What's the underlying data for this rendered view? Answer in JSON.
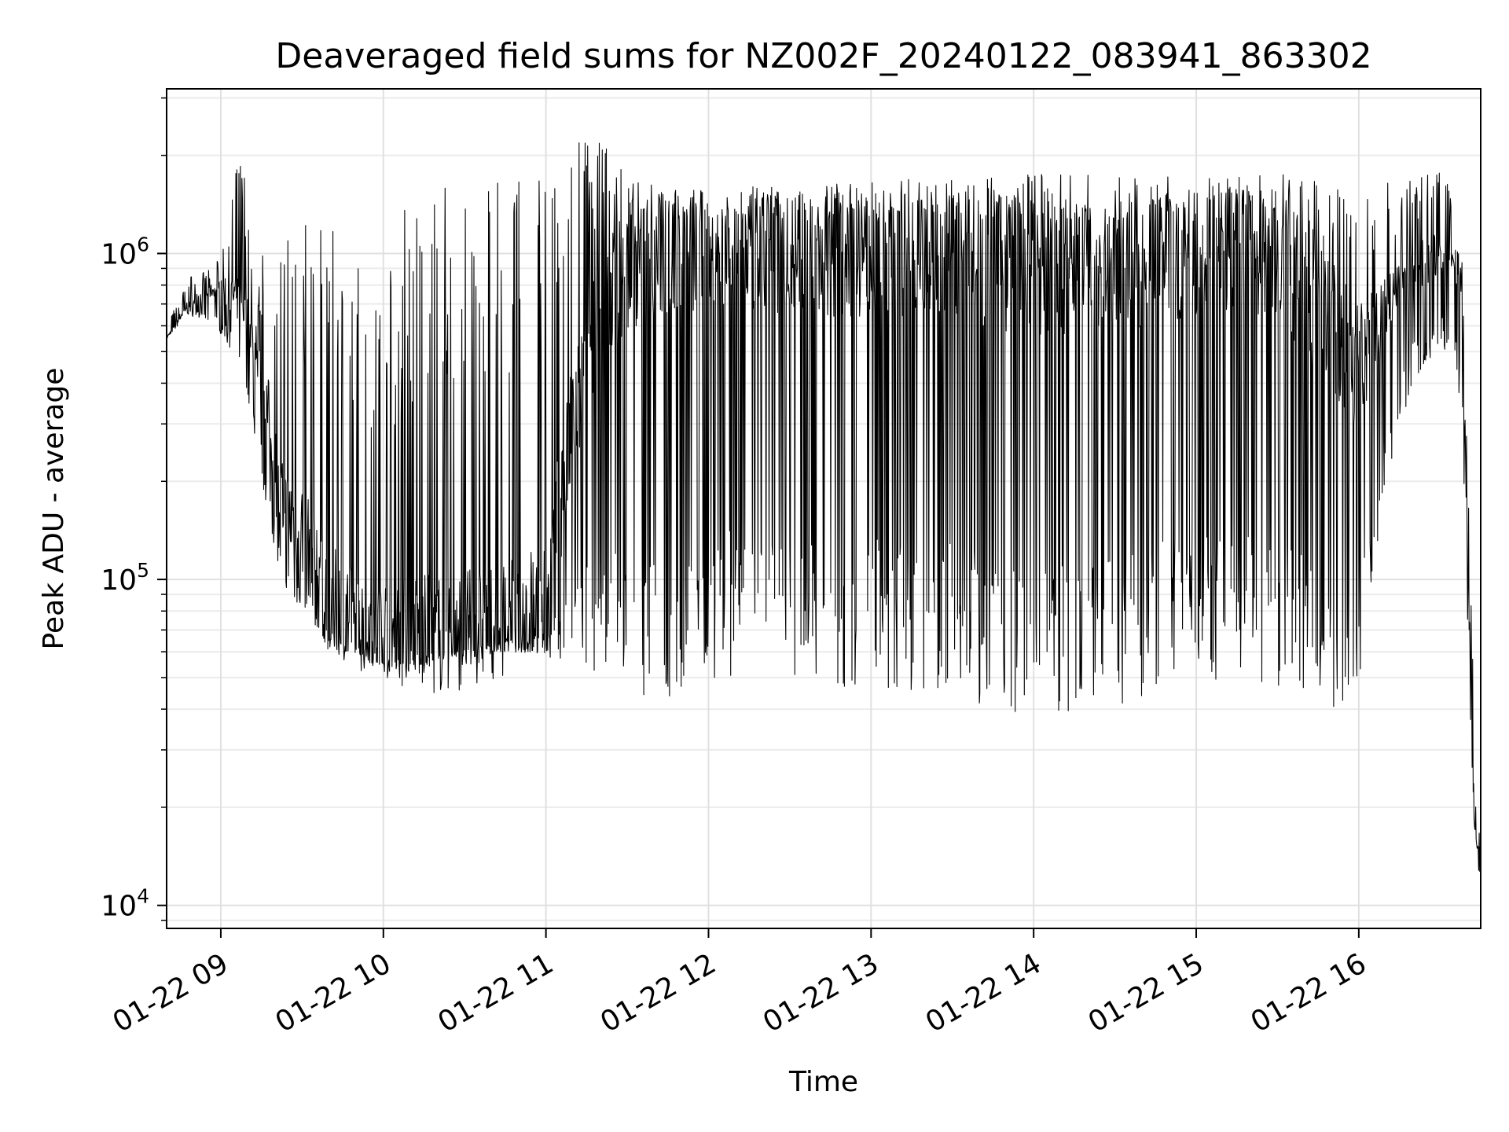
{
  "chart_data": {
    "type": "line",
    "title": "Deaveraged field sums for NZ002F_20240122_083941_863302",
    "xlabel": "Time",
    "ylabel": "Peak ADU - average",
    "yscale": "log",
    "ylim": [
      8500,
      3200000
    ],
    "xlim": [
      "2024-01-22 08:40",
      "2024-01-22 16:45"
    ],
    "grid": true,
    "line_color": "#000000",
    "x_ticks": [
      {
        "value": "2024-01-22 09:00",
        "label": "01-22 09"
      },
      {
        "value": "2024-01-22 10:00",
        "label": "01-22 10"
      },
      {
        "value": "2024-01-22 11:00",
        "label": "01-22 11"
      },
      {
        "value": "2024-01-22 12:00",
        "label": "01-22 12"
      },
      {
        "value": "2024-01-22 13:00",
        "label": "01-22 13"
      },
      {
        "value": "2024-01-22 14:00",
        "label": "01-22 14"
      },
      {
        "value": "2024-01-22 15:00",
        "label": "01-22 15"
      },
      {
        "value": "2024-01-22 16:00",
        "label": "01-22 16"
      }
    ],
    "y_ticks": [
      {
        "value": 10000,
        "base": "10",
        "exp": "4"
      },
      {
        "value": 100000,
        "base": "10",
        "exp": "5"
      },
      {
        "value": 1000000,
        "base": "10",
        "exp": "6"
      }
    ],
    "series": [
      {
        "x": [
          "2024-01-22 08:40",
          "2024-01-22 08:48",
          "2024-01-22 08:58",
          "2024-01-22 09:08",
          "2024-01-22 09:13",
          "2024-01-22 09:18",
          "2024-01-22 09:22",
          "2024-01-22 09:30",
          "2024-01-22 09:40",
          "2024-01-22 09:50",
          "2024-01-22 10:00",
          "2024-01-22 10:10",
          "2024-01-22 10:20",
          "2024-01-22 10:30",
          "2024-01-22 10:40",
          "2024-01-22 10:50",
          "2024-01-22 11:00",
          "2024-01-22 11:10",
          "2024-01-22 11:20",
          "2024-01-22 11:30",
          "2024-01-22 11:45",
          "2024-01-22 12:00",
          "2024-01-22 12:30",
          "2024-01-22 13:00",
          "2024-01-22 13:30",
          "2024-01-22 14:00",
          "2024-01-22 14:30",
          "2024-01-22 15:00",
          "2024-01-22 15:30",
          "2024-01-22 15:50",
          "2024-01-22 16:00",
          "2024-01-22 16:10",
          "2024-01-22 16:20",
          "2024-01-22 16:30",
          "2024-01-22 16:35",
          "2024-01-22 16:38",
          "2024-01-22 16:42",
          "2024-01-22 16:45"
        ],
        "y": [
          550000,
          700000,
          780000,
          720000,
          500000,
          300000,
          170000,
          140000,
          90000,
          75000,
          72000,
          68000,
          68000,
          70000,
          75000,
          80000,
          90000,
          300000,
          700000,
          900000,
          1000000,
          1000000,
          1000000,
          1000000,
          1000000,
          900000,
          900000,
          1000000,
          1000000,
          600000,
          450000,
          700000,
          900000,
          1000000,
          1000000,
          800000,
          25000,
          11000
        ],
        "min": [
          550000,
          650000,
          600000,
          450000,
          250000,
          150000,
          100000,
          80000,
          60000,
          58000,
          52000,
          52000,
          55000,
          57000,
          58000,
          60000,
          58000,
          55000,
          50000,
          45000,
          40000,
          50000,
          48000,
          45000,
          45000,
          35000,
          40000,
          50000,
          45000,
          40000,
          45000,
          200000,
          400000,
          500000,
          500000,
          300000,
          20000,
          11000
        ],
        "max": [
          600000,
          850000,
          900000,
          2200000,
          700000,
          1600000,
          1300000,
          1400000,
          1200000,
          1000000,
          1000000,
          1600000,
          1650000,
          1650000,
          1650000,
          1700000,
          1800000,
          2300000,
          2400000,
          1700000,
          1650000,
          1550000,
          1650000,
          1650000,
          1750000,
          1750000,
          1750000,
          1700000,
          1750000,
          1700000,
          1650000,
          1650000,
          1750000,
          1900000,
          1500000,
          1200000,
          60000,
          15000
        ]
      }
    ]
  }
}
